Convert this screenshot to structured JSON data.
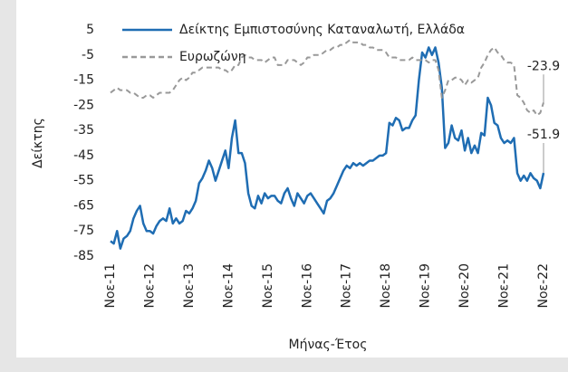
{
  "chart_data": {
    "type": "line",
    "x_label": "Μήνας-Έτος",
    "y_label": "Δείκτης",
    "categories": [
      "Νοε-11",
      null,
      null,
      null,
      null,
      null,
      null,
      null,
      null,
      null,
      null,
      null,
      "Νοε-12",
      null,
      null,
      null,
      null,
      null,
      null,
      null,
      null,
      null,
      null,
      null,
      "Νοε-13",
      null,
      null,
      null,
      null,
      null,
      null,
      null,
      null,
      null,
      null,
      null,
      "Νοε-14",
      null,
      null,
      null,
      null,
      null,
      null,
      null,
      null,
      null,
      null,
      null,
      "Νοε-15",
      null,
      null,
      null,
      null,
      null,
      null,
      null,
      null,
      null,
      null,
      null,
      "Νοε-16",
      null,
      null,
      null,
      null,
      null,
      null,
      null,
      null,
      null,
      null,
      null,
      "Νοε-17",
      null,
      null,
      null,
      null,
      null,
      null,
      null,
      null,
      null,
      null,
      null,
      "Νοε-18",
      null,
      null,
      null,
      null,
      null,
      null,
      null,
      null,
      null,
      null,
      null,
      "Νοε-19",
      null,
      null,
      null,
      null,
      null,
      null,
      null,
      null,
      null,
      null,
      null,
      "Νοε-20",
      null,
      null,
      null,
      null,
      null,
      null,
      null,
      null,
      null,
      null,
      null,
      "Νοε-21",
      null,
      null,
      null,
      null,
      null,
      null,
      null,
      null,
      null,
      null,
      null,
      "Νοε-22"
    ],
    "series": [
      {
        "name": "Δείκτης Εμπιστοσύνης Καταναλωτή, Ελλάδα",
        "color": "#1f6db3",
        "linestyle": "solid",
        "values": [
          -79,
          -80,
          -75,
          -82,
          -78,
          -77,
          -75,
          -70,
          -67,
          -65,
          -72,
          -75,
          -75,
          -76,
          -73,
          -71,
          -70,
          -71,
          -66,
          -72,
          -70,
          -72,
          -71,
          -67,
          -68,
          -66,
          -63,
          -56,
          -54,
          -51,
          -47,
          -50,
          -55,
          -51,
          -47,
          -43,
          -50,
          -38,
          -31,
          -44,
          -44,
          -48,
          -60,
          -65,
          -66,
          -61,
          -64,
          -60,
          -62,
          -61,
          -61,
          -63,
          -64,
          -60,
          -58,
          -62,
          -65,
          -60,
          -62,
          -64,
          -61,
          -60,
          -62,
          -64,
          -66,
          -68,
          -63,
          -62,
          -60,
          -57,
          -54,
          -51,
          -49,
          -50,
          -48,
          -49,
          -48,
          -49,
          -48,
          -47,
          -47,
          -46,
          -45,
          -45,
          -44,
          -32,
          -33,
          -30,
          -31,
          -35,
          -34,
          -34,
          -31,
          -29,
          -15,
          -4,
          -6,
          -2,
          -5,
          -2,
          -8,
          -18,
          -42,
          -40,
          -33,
          -38,
          -39,
          -35,
          -43,
          -38,
          -44,
          -41,
          -44,
          -36,
          -37,
          -22,
          -25,
          -32,
          -33,
          -38,
          -40,
          -39,
          -40,
          -38,
          -52,
          -55,
          -53,
          -55,
          -52,
          -54,
          -55,
          -58,
          -51.9
        ]
      },
      {
        "name": "Ευρωζώνη",
        "color": "#999999",
        "linestyle": "dashed",
        "values": [
          -20,
          -19,
          -18,
          -19,
          -19,
          -19,
          -20,
          -20,
          -21,
          -22,
          -22,
          -21,
          -21,
          -22,
          -21,
          -20,
          -20,
          -20,
          -20,
          -19,
          -17,
          -15,
          -14,
          -15,
          -14,
          -12,
          -12,
          -11,
          -10,
          -10,
          -10,
          -10,
          -10,
          -10,
          -11,
          -11,
          -12,
          -11,
          -9,
          -9,
          -6,
          -5,
          -6,
          -6,
          -7,
          -7,
          -7,
          -8,
          -7,
          -6,
          -6,
          -9,
          -9,
          -9,
          -7,
          -7,
          -7,
          -8,
          -9,
          -8,
          -6,
          -6,
          -5,
          -5,
          -5,
          -4,
          -3,
          -3,
          -2,
          -2,
          -1,
          -1,
          0,
          1,
          0,
          0,
          0,
          -1,
          -1,
          -2,
          -2,
          -3,
          -3,
          -3,
          -4,
          -6,
          -6,
          -6,
          -7,
          -7,
          -7,
          -7,
          -6,
          -7,
          -7,
          -7,
          -7,
          -8,
          -7,
          -7,
          -11,
          -22,
          -19,
          -15,
          -15,
          -14,
          -14,
          -15,
          -17,
          -15,
          -16,
          -15,
          -14,
          -10,
          -8,
          -5,
          -3,
          -2,
          -4,
          -5,
          -7,
          -8,
          -8,
          -9,
          -21,
          -22,
          -24,
          -27,
          -28,
          -27,
          -29,
          -28,
          -23.9
        ]
      }
    ],
    "annotations": [
      {
        "text": "-23.9",
        "series": 1
      },
      {
        "text": "-51.9",
        "series": 0
      }
    ],
    "ylim": [
      -85,
      5
    ],
    "yticks": [
      -85,
      -75,
      -65,
      -55,
      -45,
      -35,
      -25,
      -15,
      -5,
      5
    ],
    "grid": false,
    "legend": "top"
  }
}
